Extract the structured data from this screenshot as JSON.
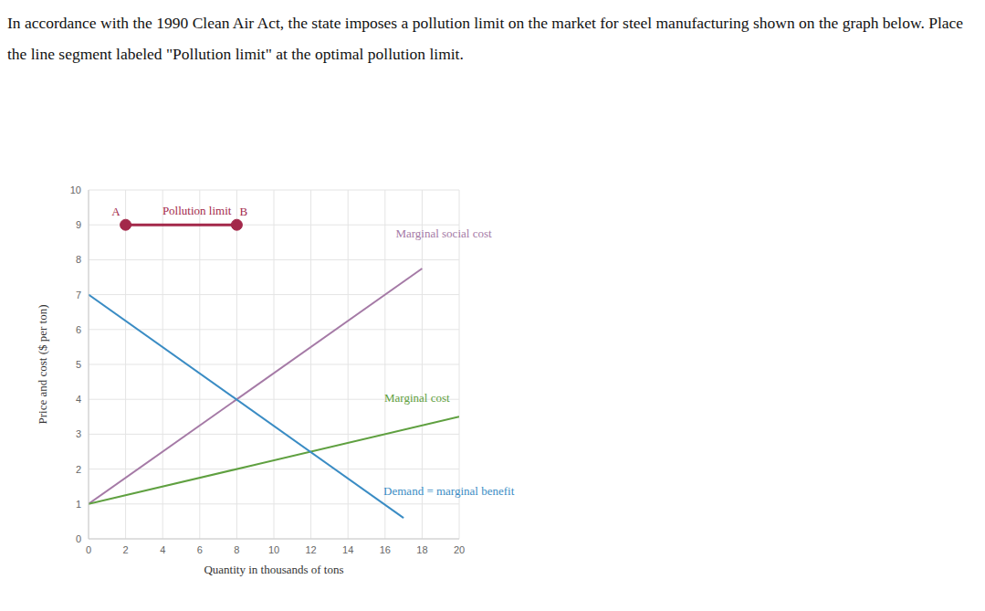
{
  "chart_data": {
    "type": "line",
    "title": "In accordance with the 1990 Clean Air Act, the state imposes a pollution limit on the market for steel manufacturing shown on the graph below. Place the line segment labeled \"Pollution limit\" at the optimal pollution limit.",
    "x_label": "Quantity in thousands of tons",
    "y_label": "Price and cost ($ per ton)",
    "xlim": [
      0,
      20
    ],
    "xticks": [
      0,
      2,
      4,
      6,
      8,
      10,
      12,
      14,
      16,
      18,
      20
    ],
    "ylim": [
      0,
      10
    ],
    "yticks": [
      0,
      1,
      2,
      3,
      4,
      5,
      6,
      7,
      8,
      9,
      10
    ],
    "grid": true,
    "series": [
      {
        "name": "Marginal social cost",
        "color": "#a57aa6",
        "x": [
          0,
          18
        ],
        "values": [
          1,
          7.75
        ]
      },
      {
        "name": "Marginal cost",
        "color": "#5fa040",
        "x": [
          0,
          20
        ],
        "values": [
          1,
          3.5
        ]
      },
      {
        "name": "Demand = marginal benefit",
        "color": "#3a8cc4",
        "x": [
          0,
          17
        ],
        "values": [
          7,
          0.6
        ]
      },
      {
        "name": "Pollution limit",
        "color": "#a3284a",
        "x": [
          2,
          8
        ],
        "values": [
          9,
          9
        ],
        "marker": "circle",
        "point_labels": [
          "A",
          "B"
        ]
      }
    ]
  }
}
